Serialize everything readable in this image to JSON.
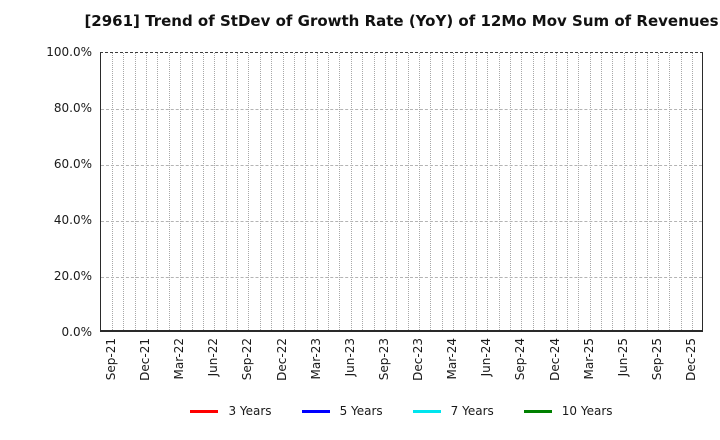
{
  "chart_data": {
    "type": "line",
    "title": "[2961]  Trend of StDev of Growth Rate (YoY) of 12Mo Mov Sum of Revenues",
    "xlabel": "",
    "ylabel": "",
    "ylim": [
      0,
      100
    ],
    "grid": true,
    "legend_position": "bottom-center",
    "y_ticks": [
      {
        "label": "0.0%",
        "value": 0
      },
      {
        "label": "20.0%",
        "value": 20
      },
      {
        "label": "40.0%",
        "value": 40
      },
      {
        "label": "60.0%",
        "value": 60
      },
      {
        "label": "80.0%",
        "value": 80
      },
      {
        "label": "100.0%",
        "value": 100
      }
    ],
    "x_tick_labels": [
      "Sep-21",
      "Dec-21",
      "Mar-22",
      "Jun-22",
      "Sep-22",
      "Dec-22",
      "Mar-23",
      "Jun-23",
      "Sep-23",
      "Dec-23",
      "Mar-24",
      "Jun-24",
      "Sep-24",
      "Dec-24",
      "Mar-25",
      "Jun-25",
      "Sep-25",
      "Dec-25"
    ],
    "x_label_every_n_months": 3,
    "series": [
      {
        "name": "3 Years",
        "color": "#ff0000",
        "values": []
      },
      {
        "name": "5 Years",
        "color": "#0000ff",
        "values": []
      },
      {
        "name": "7 Years",
        "color": "#00e5ee",
        "values": []
      },
      {
        "name": "10 Years",
        "color": "#008000",
        "values": []
      }
    ]
  },
  "colors": {
    "grid_vertical": "#a8a8a8",
    "grid_horizontal": "#b4b4b4",
    "spine": "#2a2a2a",
    "text": "#1a1a1a"
  }
}
